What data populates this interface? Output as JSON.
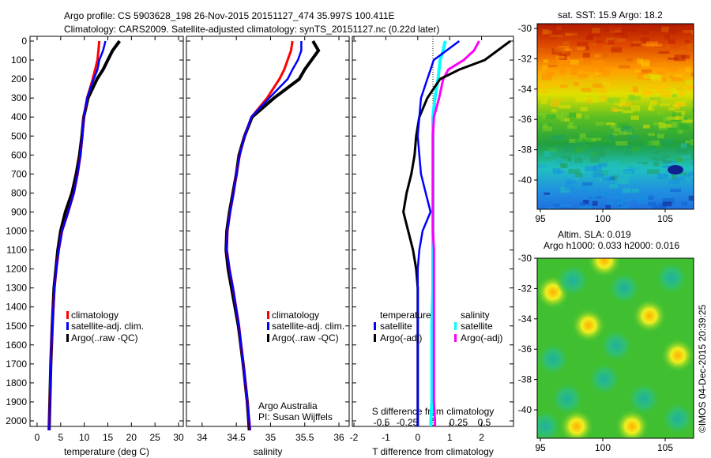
{
  "title_line1": "Argo profile: CS 5903628_198 26-Nov-2015 20151127_474 35.997S 100.411E",
  "title_line2": "Climatology: CARS2009. Satellite-adjusted climatology: synTS_20151127.nc (0.22d later)",
  "colors": {
    "climatology": "#ff0000",
    "satellite": "#0000ff",
    "argo": "#000000",
    "sal_satellite": "#00ffff",
    "sal_argo": "#ff00ff"
  },
  "credit": "©IMOS 04-Dec-2015 20:39:25",
  "chart_data": [
    {
      "type": "line",
      "title": "",
      "xlabel": "temperature (deg C)",
      "ylabel": "depth",
      "xlim": [
        -1.5,
        31
      ],
      "ylim": [
        2050,
        0
      ],
      "xticks": [
        "0",
        "5",
        "10",
        "15",
        "20",
        "25",
        "30"
      ],
      "xtick_values": [
        0,
        5,
        10,
        15,
        20,
        25,
        30
      ],
      "yticks": [
        "0",
        "100",
        "200",
        "300",
        "400",
        "500",
        "600",
        "700",
        "800",
        "900",
        "1000",
        "1100",
        "1200",
        "1300",
        "1400",
        "1500",
        "1600",
        "1700",
        "1800",
        "1900",
        "2000"
      ],
      "depth": [
        0,
        50,
        100,
        150,
        200,
        300,
        400,
        500,
        600,
        700,
        800,
        900,
        1000,
        1100,
        1200,
        1300,
        1500,
        1700,
        1900,
        2000,
        2050
      ],
      "series": [
        {
          "name": "climatology",
          "values": [
            13.2,
            13.0,
            12.8,
            12.3,
            11.8,
            10.6,
            9.9,
            9.6,
            9.2,
            8.6,
            7.8,
            6.6,
            5.3,
            4.6,
            4.1,
            3.7,
            3.2,
            2.9,
            2.7,
            2.6,
            2.55
          ]
        },
        {
          "name": "satellite-adj. clim.",
          "values": [
            14.5,
            14.0,
            13.2,
            12.8,
            12.0,
            10.6,
            9.9,
            9.6,
            9.2,
            8.6,
            7.8,
            6.6,
            5.3,
            4.6,
            4.1,
            3.7,
            3.2,
            2.9,
            2.7,
            2.6,
            2.55
          ]
        },
        {
          "name": "Argo(..raw -QC)",
          "values": [
            17.5,
            16.0,
            15.0,
            14.0,
            12.7,
            10.8,
            9.9,
            9.5,
            9.0,
            8.3,
            7.4,
            6.0,
            5.0,
            4.4,
            4.0,
            3.6,
            3.2,
            2.9,
            2.7,
            2.6,
            2.55
          ]
        }
      ],
      "legend": [
        "climatology",
        "satellite-adj. clim.",
        "Argo(..raw -QC)"
      ],
      "legend_placement": "lower-center"
    },
    {
      "type": "line",
      "xlabel": "salinity",
      "xlim": [
        33.77,
        36.15
      ],
      "ylim": [
        2050,
        0
      ],
      "xticks": [
        "34",
        "34.5",
        "35",
        "35.5",
        "36"
      ],
      "xtick_values": [
        34,
        34.5,
        35,
        35.5,
        36
      ],
      "depth": [
        0,
        50,
        100,
        150,
        200,
        300,
        400,
        500,
        600,
        700,
        800,
        900,
        1000,
        1100,
        1200,
        1300,
        1500,
        1700,
        1900,
        2000,
        2050
      ],
      "series": [
        {
          "name": "climatology",
          "values": [
            35.32,
            35.3,
            35.25,
            35.2,
            35.13,
            34.95,
            34.72,
            34.62,
            34.55,
            34.5,
            34.46,
            34.41,
            34.37,
            34.36,
            34.4,
            34.45,
            34.54,
            34.6,
            34.66,
            34.69,
            34.7
          ]
        },
        {
          "name": "satellite-adj. clim.",
          "values": [
            35.45,
            35.45,
            35.4,
            35.32,
            35.25,
            34.98,
            34.72,
            34.62,
            34.55,
            34.5,
            34.46,
            34.41,
            34.37,
            34.36,
            34.4,
            34.45,
            34.54,
            34.6,
            34.66,
            34.69,
            34.7
          ]
        },
        {
          "name": "Argo(..raw -QC)",
          "values": [
            35.62,
            35.7,
            35.6,
            35.5,
            35.42,
            35.05,
            34.73,
            34.62,
            34.54,
            34.5,
            34.45,
            34.4,
            34.36,
            34.35,
            34.38,
            34.43,
            34.53,
            34.6,
            34.66,
            34.68,
            34.69
          ]
        }
      ],
      "legend": [
        "climatology",
        "satellite-adj. clim.",
        "Argo(..raw -QC)"
      ],
      "annotation1": "Argo Australia",
      "annotation2": "PI: Susan Wijffels"
    },
    {
      "type": "line",
      "xlabel": "T difference from climatology",
      "xlabel2": "S difference from climatology",
      "xlim": [
        -2.05,
        3.0
      ],
      "ylim": [
        2050,
        0
      ],
      "xticks": [
        "-2",
        "-1",
        "0",
        "1",
        "2"
      ],
      "xtick_values": [
        -2,
        -1,
        0,
        1,
        2
      ],
      "x2ticks": [
        "-0.5",
        "-0.25",
        "0",
        "0.25",
        "0.5"
      ],
      "x2tick_values": [
        -0.5,
        -0.25,
        0,
        0.25,
        0.5
      ],
      "depth": [
        0,
        50,
        100,
        150,
        200,
        300,
        400,
        500,
        600,
        700,
        800,
        900,
        1000,
        1100,
        1200,
        1300,
        1500,
        1700,
        1900,
        2000,
        2050
      ],
      "series": [
        {
          "name": "temperature satellite",
          "axis": "T",
          "values": [
            1.3,
            0.9,
            0.5,
            0.4,
            0.3,
            0.1,
            0.05,
            0,
            0.05,
            0.1,
            0.25,
            0.4,
            0.15,
            0.05,
            0,
            0,
            0,
            0,
            0,
            0,
            0
          ]
        },
        {
          "name": "temperature Argo(-adj)",
          "axis": "T",
          "values": [
            2.9,
            2.5,
            2.1,
            1.3,
            0.7,
            0.3,
            0.05,
            -0.05,
            -0.1,
            -0.2,
            -0.35,
            -0.45,
            -0.3,
            -0.15,
            -0.05,
            0,
            0,
            0,
            0,
            0,
            0
          ]
        },
        {
          "name": "salinity satellite",
          "axis": "S",
          "values": [
            0.12,
            0.1,
            0.07,
            0.06,
            0.05,
            0.02,
            0,
            0,
            0,
            0,
            0,
            0,
            0,
            0,
            0,
            0,
            -0.01,
            -0.01,
            -0.01,
            -0.02,
            -0.02
          ]
        },
        {
          "name": "salinity Argo(-adj)",
          "axis": "S",
          "values": [
            0.45,
            0.4,
            0.3,
            0.15,
            0.1,
            0.06,
            0.01,
            0,
            0,
            0,
            0,
            0,
            0,
            0.01,
            0.01,
            0.01,
            0.01,
            0.01,
            0.01,
            0.02,
            0.02
          ]
        }
      ],
      "legend_t_title": "temperature",
      "legend_s_title": "salinity",
      "legend_t": [
        "satellite",
        "Argo(-adj)"
      ],
      "legend_s": [
        "satellite",
        "Argo(-adj)"
      ]
    },
    {
      "type": "heatmap",
      "title": "sat. SST: 15.9 Argo: 18.2",
      "xticks": [
        "95",
        "100",
        "105"
      ],
      "yticks": [
        "-30",
        "-32",
        "-34",
        "-36",
        "-38",
        "-40"
      ]
    },
    {
      "type": "heatmap",
      "title_line1": "Altim. SLA: 0.019",
      "title_line2": "Argo h1000: 0.033 h2000: 0.016",
      "xticks": [
        "95",
        "100",
        "105"
      ],
      "yticks": [
        "-30",
        "-32",
        "-34",
        "-36",
        "-38",
        "-40"
      ]
    }
  ]
}
